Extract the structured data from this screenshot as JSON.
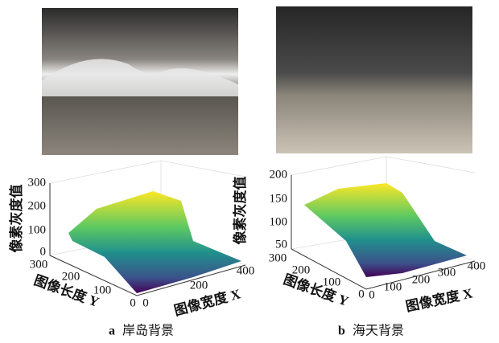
{
  "panels": [
    {
      "caption": {
        "letter": "a",
        "text": "岸岛背景"
      },
      "plot": {
        "z_label": "像素灰度值",
        "y_label": "图像长度 Y",
        "x_label": "图像宽度 X",
        "z_ticks": [
          "0",
          "100",
          "200",
          "300"
        ],
        "y_ticks": [
          "300",
          "200",
          "100",
          "0"
        ],
        "x_ticks": [
          "0",
          "200",
          "400"
        ]
      }
    },
    {
      "caption": {
        "letter": "b",
        "text": "海天背景"
      },
      "plot": {
        "z_label": "像素灰度值",
        "y_label": "图像长度 Y",
        "x_label": "图像宽度 X",
        "z_ticks": [
          "50",
          "100",
          "150",
          "200"
        ],
        "y_ticks": [
          "300",
          "200",
          "100",
          "0"
        ],
        "x_ticks": [
          "0",
          "100",
          "200",
          "300",
          "400"
        ]
      }
    }
  ]
}
